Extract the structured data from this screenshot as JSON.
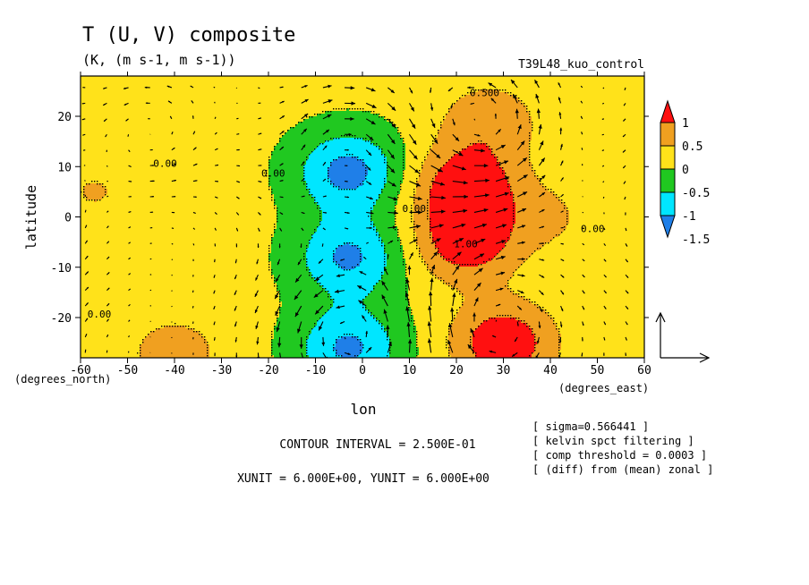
{
  "chart_data": {
    "type": "heatmap",
    "title": "T (U, V) composite",
    "units": "(K, (m s-1, m s-1))",
    "run_label": "T39L48_kuo_control",
    "xlabel": "lon",
    "ylabel": "latitude",
    "x_unit_label": "(degrees_east)",
    "y_unit_label": "(degrees_north)",
    "xlim": [
      -60,
      60
    ],
    "ylim": [
      -28,
      28
    ],
    "x_ticks": [
      -60,
      -50,
      -40,
      -30,
      -20,
      -10,
      0,
      10,
      20,
      30,
      40,
      50,
      60
    ],
    "x_tick_labels": [
      "-60",
      "-50",
      "-40",
      "-30",
      "-20",
      "-10",
      "0",
      "10",
      "20",
      "30",
      "40",
      "50",
      "60"
    ],
    "y_ticks": [
      -20,
      -10,
      0,
      10,
      20
    ],
    "y_tick_labels": [
      "-20",
      "-10",
      "0",
      "10",
      "20"
    ],
    "colorbar": {
      "levels": [
        -1.5,
        -1,
        -0.5,
        0,
        0.5,
        1
      ],
      "labels": [
        "-1.5",
        "-1",
        "-0.5",
        "0",
        "0.5",
        "1"
      ],
      "colors": [
        "#1f7fe8",
        "#00e6ff",
        "#20c820",
        "#ffe21a",
        "#f0a020",
        "#ff1010"
      ],
      "extend": "both"
    },
    "contour_labels": [
      {
        "text": "0.500",
        "lon": 26,
        "lat": 24
      },
      {
        "text": "0.00",
        "lon": -42,
        "lat": 10
      },
      {
        "text": "0.00",
        "lon": -19,
        "lat": 8
      },
      {
        "text": "0.00",
        "lon": 11,
        "lat": 1
      },
      {
        "text": "1.00",
        "lon": 22,
        "lat": -6
      },
      {
        "text": "0.00",
        "lon": 49,
        "lat": -3
      },
      {
        "text": "0.00",
        "lon": -56,
        "lat": -20
      }
    ],
    "anomaly_centers": [
      {
        "lon": -57,
        "lat": 5,
        "value": 0.4
      },
      {
        "lon": -3,
        "lat": 9,
        "value": -1.3
      },
      {
        "lon": -3,
        "lat": -8,
        "value": -1.2
      },
      {
        "lon": -3,
        "lat": -26,
        "value": -1.2
      },
      {
        "lon": 27,
        "lat": 19,
        "value": 0.7
      },
      {
        "lon": 22,
        "lat": 6,
        "value": 1.3
      },
      {
        "lon": 22,
        "lat": -5,
        "value": 1.2
      },
      {
        "lon": 30,
        "lat": -25,
        "value": 1.3
      },
      {
        "lon": 40,
        "lat": 0,
        "value": 0.4
      },
      {
        "lon": -40,
        "lat": -27,
        "value": 0.6
      }
    ],
    "vector_reference": {
      "xunit": 6.0,
      "yunit": 6.0
    },
    "contour_interval": 0.25
  },
  "footer": {
    "contour_interval": "CONTOUR INTERVAL = 2.500E-01",
    "units_line": "XUNIT = 6.000E+00, YUNIT = 6.000E+00"
  },
  "notes": [
    "[ sigma=0.566441 ]",
    "[ kelvin spct filtering ]",
    "[ comp threshold = 0.0003 ]",
    "[ (diff) from (mean) zonal ]"
  ]
}
